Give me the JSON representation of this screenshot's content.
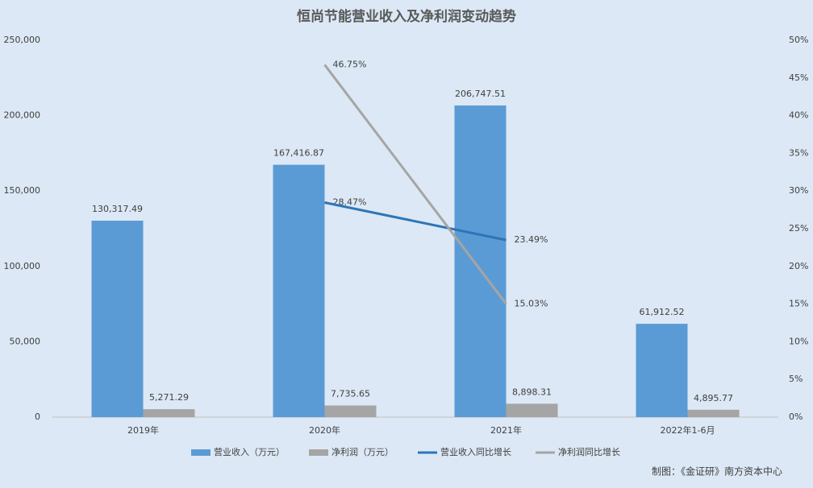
{
  "chart_data": {
    "type": "bar-line",
    "title": "恒尚节能营业收入及净利润变动趋势",
    "categories": [
      "2019年",
      "2020年",
      "2021年",
      "2022年1-6月"
    ],
    "series": [
      {
        "name": "营业收入（万元）",
        "type": "bar",
        "color": "#5b9bd5",
        "values": [
          130317.49,
          167416.87,
          206747.51,
          61912.52
        ],
        "value_labels": [
          "130,317.49",
          "167,416.87",
          "206,747.51",
          "61,912.52"
        ]
      },
      {
        "name": "净利润（万元）",
        "type": "bar",
        "color": "#a5a5a5",
        "values": [
          5271.29,
          7735.65,
          8898.31,
          4895.77
        ],
        "value_labels": [
          "5,271.29",
          "7,735.65",
          "8,898.31",
          "4,895.77"
        ]
      },
      {
        "name": "营业收入同比增长",
        "type": "line",
        "axis": "y2",
        "color": "#2e75b6",
        "values": [
          null,
          28.47,
          23.49,
          null
        ],
        "value_labels": [
          null,
          "28.47%",
          "23.49%",
          null
        ]
      },
      {
        "name": "净利润同比增长",
        "type": "line",
        "axis": "y2",
        "color": "#a5a5a5",
        "values": [
          null,
          46.75,
          15.03,
          null
        ],
        "value_labels": [
          null,
          "46.75%",
          "15.03%",
          null
        ]
      }
    ],
    "ylim": [
      0,
      250000
    ],
    "yticks": [
      0,
      {
        "value": 50000,
        "label": "50,000"
      },
      {
        "value": 100000,
        "label": "100,000"
      },
      {
        "value": 150000,
        "label": "150,000"
      },
      {
        "value": 200000,
        "label": "200,000"
      },
      {
        "value": 250000,
        "label": "250,000"
      }
    ],
    "y2lim": [
      0,
      50
    ],
    "y2ticks": [
      {
        "value": 0,
        "label": "0%"
      },
      {
        "value": 5,
        "label": "5%"
      },
      {
        "value": 10,
        "label": "10%"
      },
      {
        "value": 15,
        "label": "15%"
      },
      {
        "value": 20,
        "label": "20%"
      },
      {
        "value": 25,
        "label": "25%"
      },
      {
        "value": 30,
        "label": "30%"
      },
      {
        "value": 35,
        "label": "35%"
      },
      {
        "value": 40,
        "label": "40%"
      },
      {
        "value": 45,
        "label": "45%"
      },
      {
        "value": 50,
        "label": "50%"
      }
    ],
    "legend": "bottom",
    "source": "制图：《金证研》南方资本中心"
  }
}
